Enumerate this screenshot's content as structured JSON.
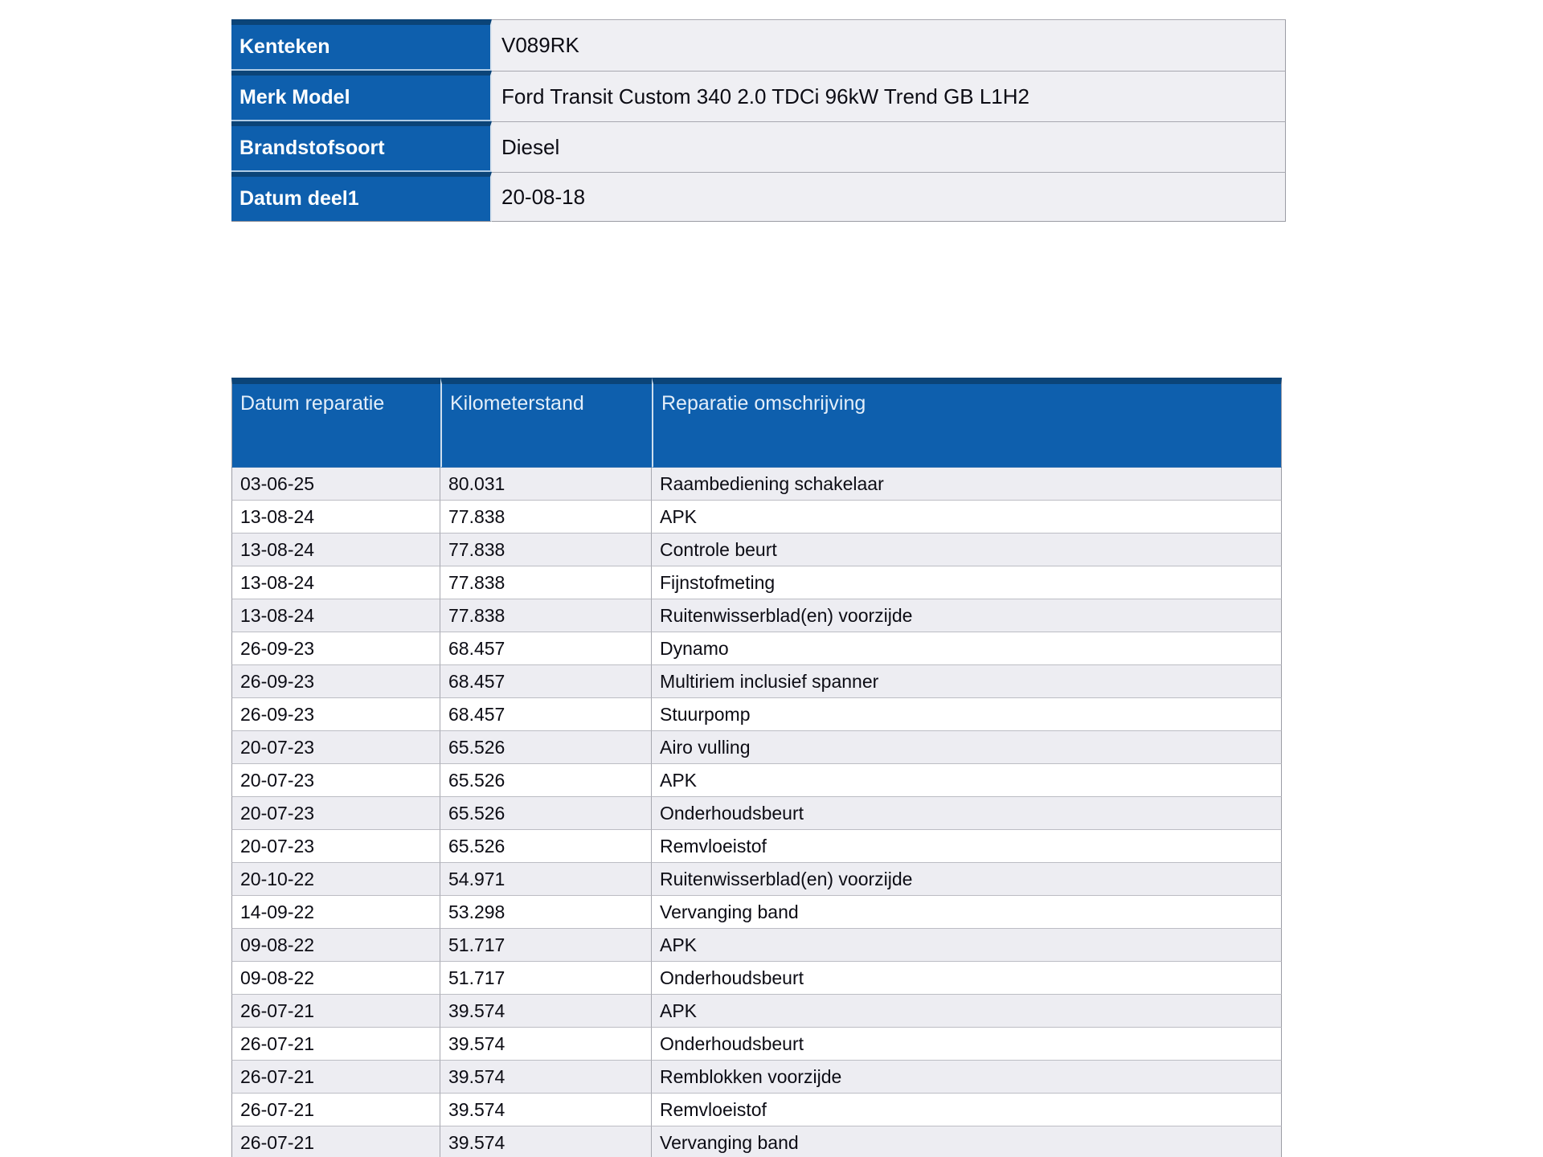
{
  "colors": {
    "header_blue": "#0E5FAD",
    "header_top_line": "#0B4478",
    "alt_row_gray": "#EDEDF2",
    "info_value_bg": "#EFEFF3",
    "header_text": "#E3EEF9",
    "label_text": "#FFFFFF",
    "body_text": "#0C0C14"
  },
  "info_table": {
    "rows": [
      {
        "label": "Kenteken",
        "value": "V089RK"
      },
      {
        "label": "Merk Model",
        "value": "Ford Transit Custom 340 2.0 TDCi 96kW Trend GB L1H2"
      },
      {
        "label": "Brandstofsoort",
        "value": "Diesel"
      },
      {
        "label": "Datum deel1",
        "value": "20-08-18"
      }
    ]
  },
  "repair_table": {
    "columns": [
      "Datum reparatie",
      "Kilometerstand",
      "Reparatie omschrijving"
    ],
    "rows": [
      {
        "date": "03-06-25",
        "km": "80.031",
        "desc": "Raambediening schakelaar"
      },
      {
        "date": "13-08-24",
        "km": "77.838",
        "desc": "APK"
      },
      {
        "date": "13-08-24",
        "km": "77.838",
        "desc": "Controle beurt"
      },
      {
        "date": "13-08-24",
        "km": "77.838",
        "desc": "Fijnstofmeting"
      },
      {
        "date": "13-08-24",
        "km": "77.838",
        "desc": "Ruitenwisserblad(en) voorzijde"
      },
      {
        "date": "26-09-23",
        "km": "68.457",
        "desc": "Dynamo"
      },
      {
        "date": "26-09-23",
        "km": "68.457",
        "desc": "Multiriem inclusief spanner"
      },
      {
        "date": "26-09-23",
        "km": "68.457",
        "desc": "Stuurpomp"
      },
      {
        "date": "20-07-23",
        "km": "65.526",
        "desc": "Airo vulling"
      },
      {
        "date": "20-07-23",
        "km": "65.526",
        "desc": "APK"
      },
      {
        "date": "20-07-23",
        "km": "65.526",
        "desc": "Onderhoudsbeurt"
      },
      {
        "date": "20-07-23",
        "km": "65.526",
        "desc": "Remvloeistof"
      },
      {
        "date": "20-10-22",
        "km": "54.971",
        "desc": "Ruitenwisserblad(en) voorzijde"
      },
      {
        "date": "14-09-22",
        "km": "53.298",
        "desc": "Vervanging band"
      },
      {
        "date": "09-08-22",
        "km": "51.717",
        "desc": "APK"
      },
      {
        "date": "09-08-22",
        "km": "51.717",
        "desc": "Onderhoudsbeurt"
      },
      {
        "date": "26-07-21",
        "km": "39.574",
        "desc": "APK"
      },
      {
        "date": "26-07-21",
        "km": "39.574",
        "desc": "Onderhoudsbeurt"
      },
      {
        "date": "26-07-21",
        "km": "39.574",
        "desc": "Remblokken voorzijde"
      },
      {
        "date": "26-07-21",
        "km": "39.574",
        "desc": "Remvloeistof"
      },
      {
        "date": "26-07-21",
        "km": "39.574",
        "desc": "Vervanging band"
      }
    ]
  }
}
